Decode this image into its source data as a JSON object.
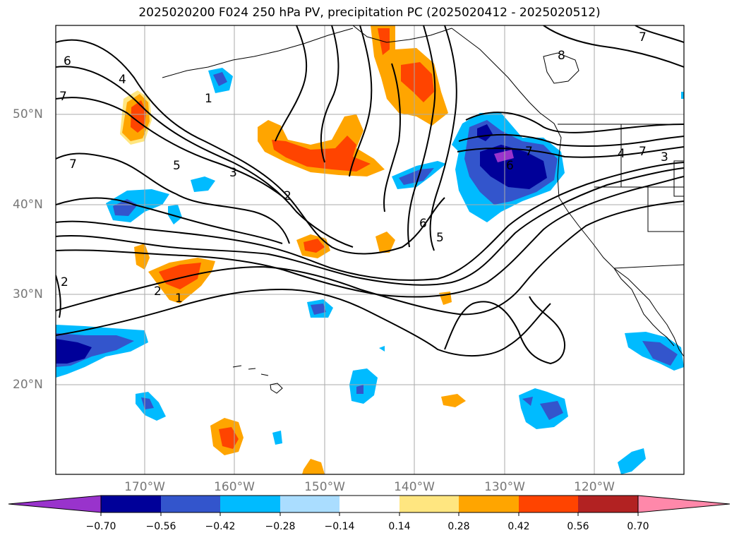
{
  "title": "2025020200 F024 250 hPa PV, precipitation PC (2025020412 - 2025020512)",
  "lat_labels": [
    "50°N",
    "40°N",
    "30°N",
    "20°N"
  ],
  "lon_labels": [
    "170°W",
    "160°W",
    "150°W",
    "140°W",
    "130°W",
    "120°W"
  ],
  "contour_labels": [
    "6",
    "4",
    "7",
    "1",
    "5",
    "3",
    "7",
    "2",
    "6",
    "5",
    "2",
    "2",
    "1",
    "7",
    "8",
    "6",
    "7",
    "4",
    "3",
    "7"
  ],
  "colorbar": {
    "ticks": [
      "−0.70",
      "−0.56",
      "−0.42",
      "−0.28",
      "−0.14",
      "0.14",
      "0.28",
      "0.42",
      "0.56",
      "0.70"
    ],
    "colors": [
      "#9933cc",
      "#000099",
      "#3355cc",
      "#00bbff",
      "#aaddff",
      "#ffffff",
      "#ffe680",
      "#ffa500",
      "#ff4400",
      "#b22222",
      "#ff88aa"
    ]
  }
}
